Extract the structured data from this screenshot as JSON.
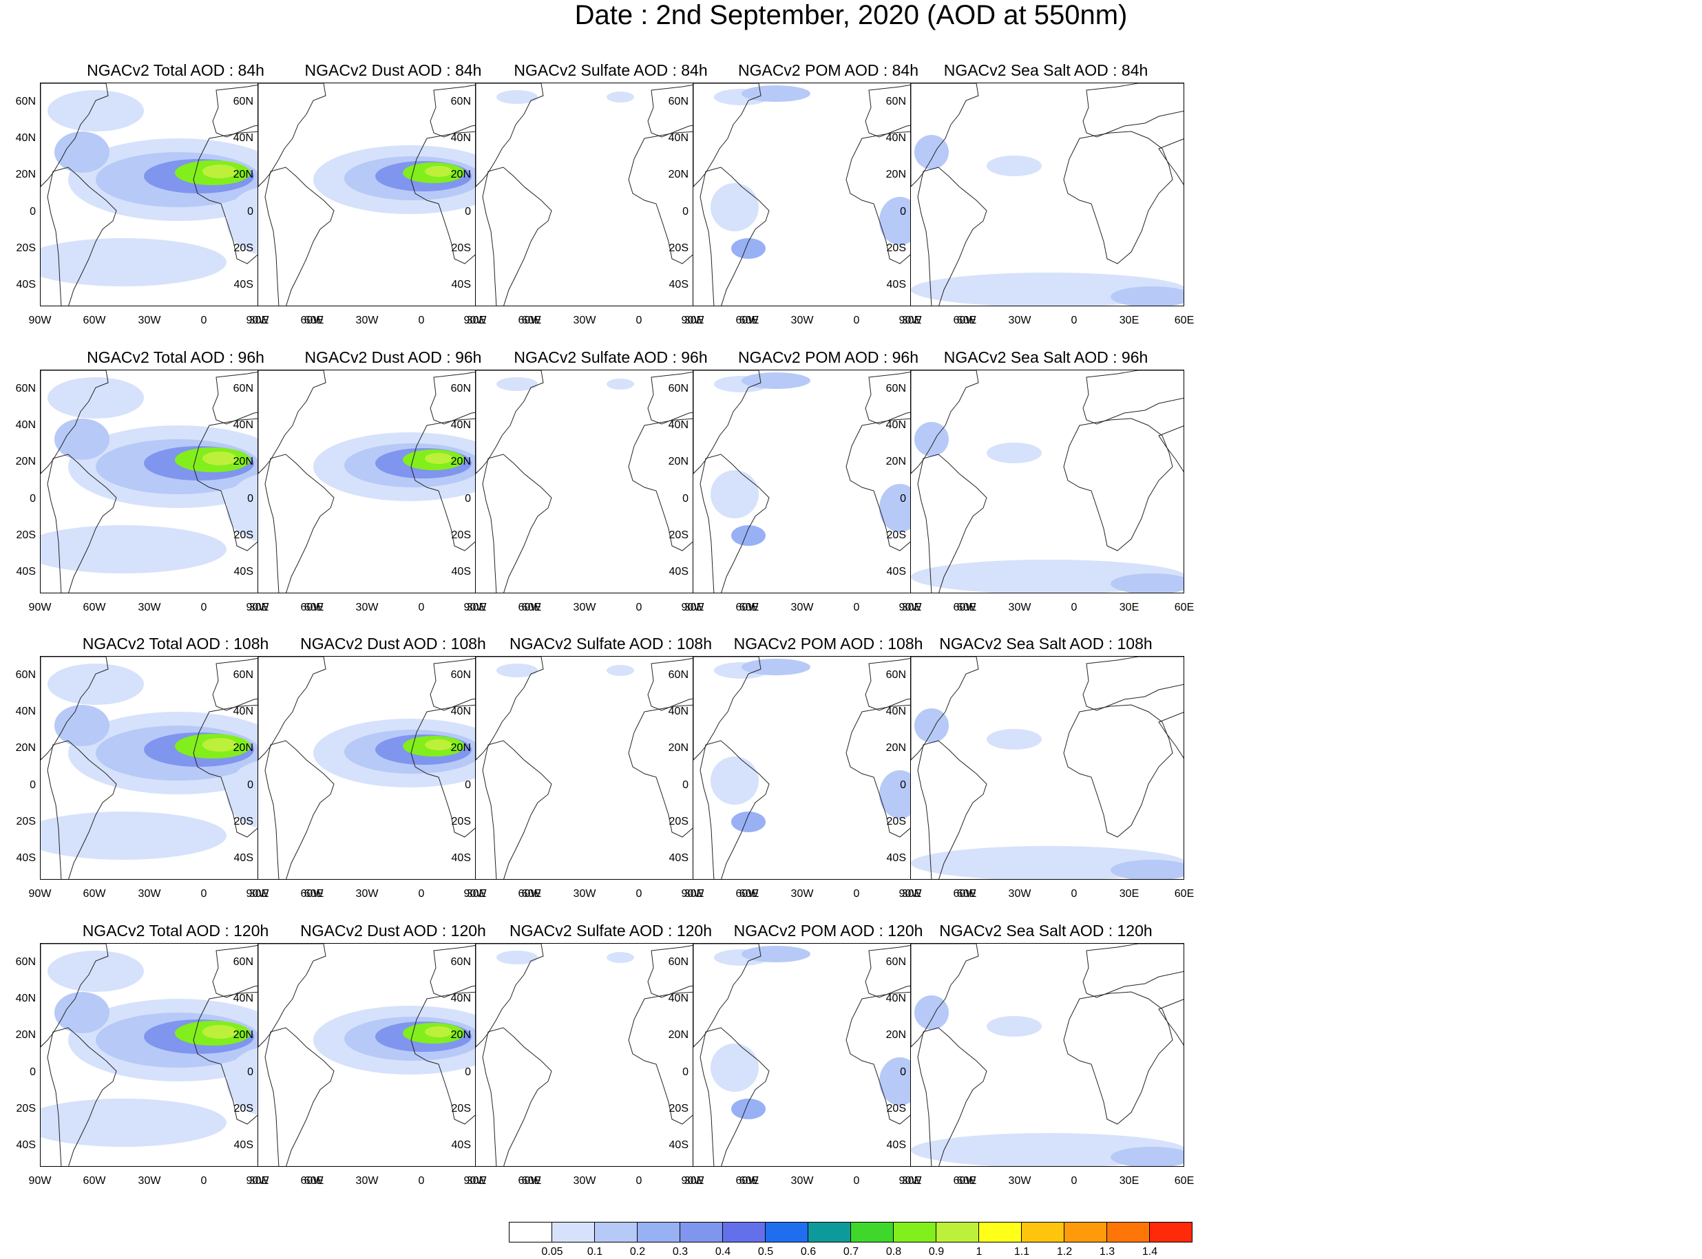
{
  "title": "Date : 2nd September, 2020 (AOD at 550nm)",
  "lat_labels": [
    "60N",
    "40N",
    "20N",
    "0",
    "20S",
    "40S"
  ],
  "lon_labels": [
    "90W",
    "60W",
    "30W",
    "0",
    "30E",
    "60E"
  ],
  "panels": [
    {
      "title": "NGACv2 Total AOD : 84h",
      "species": "total"
    },
    {
      "title": "NGACv2 Dust AOD : 84h",
      "species": "dust"
    },
    {
      "title": "NGACv2 Sulfate AOD : 84h",
      "species": "sulfate"
    },
    {
      "title": "NGACv2 POM AOD : 84h",
      "species": "pom"
    },
    {
      "title": "NGACv2 Sea Salt AOD : 84h",
      "species": "seasalt"
    },
    {
      "title": "NGACv2 Total AOD : 96h",
      "species": "total"
    },
    {
      "title": "NGACv2 Dust AOD : 96h",
      "species": "dust"
    },
    {
      "title": "NGACv2 Sulfate AOD : 96h",
      "species": "sulfate"
    },
    {
      "title": "NGACv2 POM AOD : 96h",
      "species": "pom"
    },
    {
      "title": "NGACv2 Sea Salt AOD : 96h",
      "species": "seasalt"
    },
    {
      "title": "NGACv2 Total AOD : 108h",
      "species": "total"
    },
    {
      "title": "NGACv2 Dust AOD : 108h",
      "species": "dust"
    },
    {
      "title": "NGACv2 Sulfate AOD : 108h",
      "species": "sulfate"
    },
    {
      "title": "NGACv2 POM AOD : 108h",
      "species": "pom"
    },
    {
      "title": "NGACv2 Sea Salt AOD : 108h",
      "species": "seasalt"
    },
    {
      "title": "NGACv2 Total AOD : 120h",
      "species": "total"
    },
    {
      "title": "NGACv2 Dust AOD : 120h",
      "species": "dust"
    },
    {
      "title": "NGACv2 Sulfate AOD : 120h",
      "species": "sulfate"
    },
    {
      "title": "NGACv2 POM AOD : 120h",
      "species": "pom"
    },
    {
      "title": "NGACv2 Sea Salt  AOD : 120h",
      "species": "seasalt"
    }
  ],
  "colorbar": {
    "labels": [
      "0.05",
      "0.1",
      "0.2",
      "0.3",
      "0.4",
      "0.5",
      "0.6",
      "0.7",
      "0.8",
      "0.9",
      "1",
      "1.1",
      "1.2",
      "1.3",
      "1.4"
    ],
    "colors": [
      "#ffffff",
      "#d6e2fb",
      "#b7c9f7",
      "#98b0f4",
      "#7f95ee",
      "#6470ea",
      "#1f6ef0",
      "#0e9a9a",
      "#3fd72b",
      "#82ee1c",
      "#bdf03a",
      "#ffff1a",
      "#ffc40c",
      "#ff9a0a",
      "#ff7608",
      "#ff2a0a"
    ]
  }
}
